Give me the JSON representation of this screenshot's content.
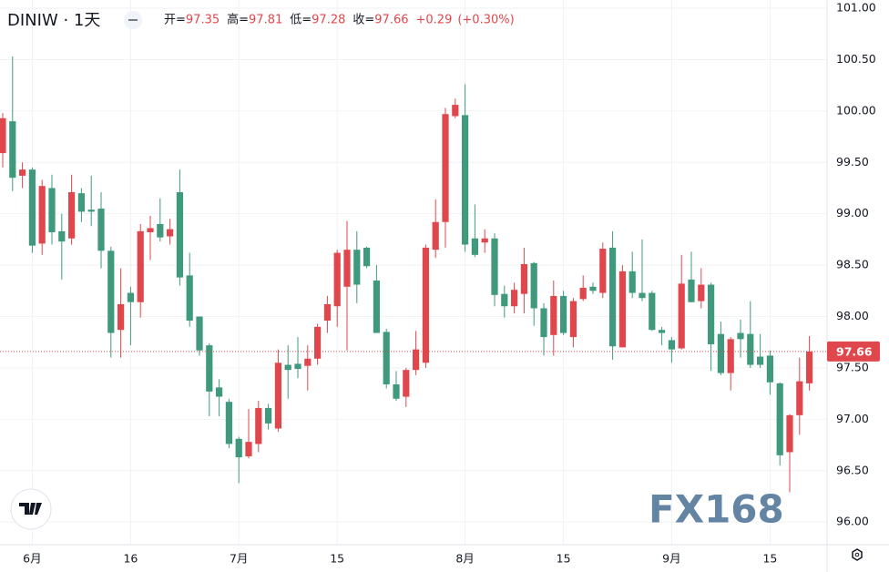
{
  "chart_data": {
    "type": "candlestick",
    "symbol": "DINIW · 1天",
    "header_items": [
      {
        "label": "开=",
        "value": "97.35"
      },
      {
        "label": "高=",
        "value": "97.81"
      },
      {
        "label": "低=",
        "value": "97.28"
      },
      {
        "label": "收=",
        "value": "97.66"
      }
    ],
    "change": "+0.29",
    "change_pct": "(+0.30%)",
    "watermark": "FX168",
    "up_color": "#e0474c",
    "down_color": "#3f9a7d",
    "grid": true,
    "last_price": {
      "value": 97.66,
      "label": "97.66"
    },
    "ylim": [
      95.78,
      101.08
    ],
    "yticks": [
      {
        "value": 96,
        "label": "96.00"
      },
      {
        "value": 96.5,
        "label": "96.50"
      },
      {
        "value": 97,
        "label": "97.00"
      },
      {
        "value": 97.5,
        "label": "97.50"
      },
      {
        "value": 98,
        "label": "98.00"
      },
      {
        "value": 98.5,
        "label": "98.50"
      },
      {
        "value": 99,
        "label": "99.00"
      },
      {
        "value": 99.5,
        "label": "99.50"
      },
      {
        "value": 100,
        "label": "100.00"
      },
      {
        "value": 100.5,
        "label": "100.50"
      },
      {
        "value": 101,
        "label": "101.00"
      }
    ],
    "categories": [
      null,
      null,
      null,
      "6月",
      null,
      null,
      null,
      null,
      null,
      null,
      null,
      null,
      null,
      "16",
      null,
      null,
      null,
      null,
      null,
      null,
      null,
      null,
      null,
      null,
      "7月",
      null,
      null,
      null,
      null,
      null,
      null,
      null,
      null,
      null,
      "15",
      null,
      null,
      null,
      null,
      null,
      null,
      null,
      null,
      null,
      null,
      null,
      null,
      "8月",
      null,
      null,
      null,
      null,
      null,
      null,
      null,
      null,
      null,
      "15",
      null,
      null,
      null,
      null,
      null,
      null,
      null,
      null,
      null,
      null,
      "9月",
      null,
      null,
      null,
      null,
      null,
      null,
      null,
      null,
      null,
      "15",
      null,
      null,
      null,
      null
    ],
    "open": [
      99.59,
      99.9,
      99.37,
      99.43,
      98.71,
      99.25,
      98.83,
      98.76,
      99.2,
      99.04,
      99.05,
      98.64,
      97.87,
      98.23,
      98.14,
      98.82,
      98.9,
      98.78,
      99.21,
      98.4,
      98.0,
      97.72,
      97.31,
      97.17,
      96.81,
      96.64,
      96.76,
      97.11,
      96.91,
      97.53,
      97.54,
      97.52,
      97.59,
      97.96,
      98.1,
      98.29,
      98.65,
      98.67,
      98.35,
      97.85,
      97.34,
      97.22,
      97.48,
      97.55,
      98.65,
      98.92,
      99.95,
      99.96,
      98.76,
      98.72,
      98.76,
      98.22,
      98.1,
      98.22,
      98.52,
      98.08,
      97.82,
      98.2,
      97.8,
      98.17,
      98.29,
      98.23,
      98.67,
      97.7,
      98.44,
      98.23,
      98.23,
      97.87,
      97.77,
      97.69,
      98.36,
      98.15,
      98.31,
      97.83,
      97.45,
      97.84,
      97.83,
      97.61,
      97.62,
      97.35,
      96.68,
      97.04,
      97.35
    ],
    "high": [
      99.98,
      100.53,
      99.5,
      99.45,
      99.33,
      99.38,
      99.0,
      99.38,
      99.25,
      99.37,
      99.21,
      98.68,
      98.47,
      98.29,
      98.9,
      98.98,
      99.15,
      98.95,
      99.43,
      98.62,
      98.0,
      97.74,
      97.39,
      97.2,
      96.83,
      97.1,
      97.18,
      97.15,
      97.68,
      97.72,
      97.8,
      97.72,
      97.93,
      98.2,
      98.65,
      98.93,
      98.83,
      98.68,
      98.5,
      97.88,
      97.47,
      97.5,
      97.86,
      98.7,
      99.14,
      100.03,
      100.12,
      100.26,
      99.09,
      98.85,
      98.81,
      98.3,
      98.33,
      98.67,
      98.53,
      98.13,
      98.35,
      98.25,
      98.18,
      98.4,
      98.33,
      98.72,
      98.83,
      98.5,
      98.63,
      98.75,
      98.25,
      97.9,
      97.8,
      98.6,
      98.63,
      98.47,
      98.33,
      97.95,
      97.8,
      97.97,
      98.15,
      97.83,
      97.67,
      97.36,
      97.05,
      97.6,
      97.81
    ],
    "low": [
      99.45,
      99.22,
      99.25,
      98.62,
      98.6,
      98.7,
      98.36,
      98.7,
      98.92,
      98.88,
      98.47,
      97.6,
      97.6,
      97.72,
      97.99,
      98.55,
      98.73,
      98.7,
      98.3,
      97.9,
      97.62,
      97.03,
      97.03,
      96.72,
      96.38,
      96.62,
      96.68,
      96.9,
      96.88,
      97.2,
      97.4,
      97.28,
      97.53,
      97.84,
      97.9,
      97.67,
      98.13,
      98.47,
      97.84,
      97.3,
      97.18,
      97.12,
      97.43,
      97.5,
      98.57,
      98.67,
      99.93,
      98.63,
      98.58,
      98.62,
      98.1,
      97.99,
      98.03,
      98.03,
      97.91,
      97.62,
      97.62,
      97.82,
      97.7,
      98.15,
      98.22,
      98.18,
      97.58,
      97.7,
      98.18,
      98.15,
      97.86,
      97.72,
      97.55,
      97.68,
      98.14,
      98.08,
      97.47,
      97.43,
      97.28,
      97.6,
      97.5,
      97.5,
      97.24,
      96.55,
      96.29,
      96.85,
      97.28
    ],
    "close": [
      99.93,
      99.35,
      99.43,
      98.69,
      99.27,
      98.82,
      98.73,
      99.21,
      99.02,
      99.02,
      98.64,
      97.84,
      98.12,
      98.14,
      98.83,
      98.86,
      98.77,
      98.85,
      98.38,
      97.96,
      97.67,
      97.27,
      97.22,
      96.76,
      96.63,
      96.78,
      97.11,
      96.96,
      97.55,
      97.48,
      97.49,
      97.59,
      97.9,
      98.12,
      98.62,
      98.65,
      98.31,
      98.49,
      97.84,
      97.34,
      97.2,
      97.48,
      97.68,
      98.67,
      98.92,
      99.97,
      100.06,
      98.7,
      98.6,
      98.76,
      98.21,
      98.1,
      98.26,
      98.51,
      98.08,
      97.8,
      98.2,
      97.84,
      98.15,
      98.28,
      98.25,
      98.66,
      97.71,
      98.44,
      98.23,
      98.18,
      97.87,
      97.84,
      97.68,
      98.32,
      98.14,
      98.31,
      97.73,
      97.45,
      97.78,
      97.78,
      97.53,
      97.53,
      97.36,
      96.65,
      97.04,
      97.37,
      97.66
    ]
  }
}
